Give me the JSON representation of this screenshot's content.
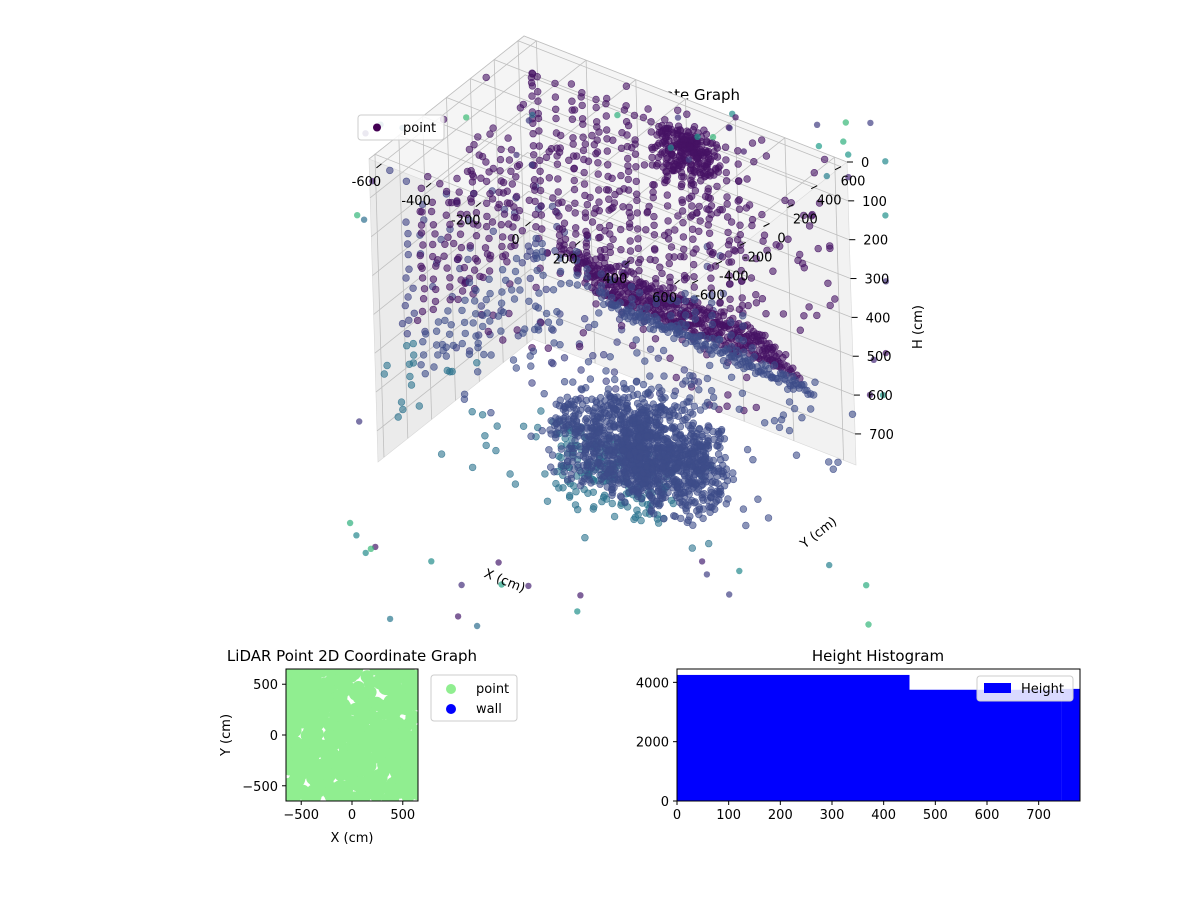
{
  "figure": {
    "background": "#ffffff"
  },
  "chart_data": [
    {
      "id": "plot3d",
      "type": "scatter",
      "title": "LiDAR Point 3D Coordinate Graph",
      "xlabel": "X (cm)",
      "ylabel": "Y (cm)",
      "zlabel": "H (cm)",
      "xlim": [
        -650,
        650
      ],
      "ylim": [
        -650,
        650
      ],
      "zlim": [
        0,
        780
      ],
      "z_inverted": true,
      "x_ticks": [
        "-600",
        "-400",
        "-200",
        "0",
        "200",
        "400",
        "600"
      ],
      "y_ticks": [
        "-600",
        "-400",
        "-200",
        "0",
        "200",
        "400",
        "600"
      ],
      "z_ticks": [
        "0",
        "100",
        "200",
        "300",
        "400",
        "500",
        "600",
        "700"
      ],
      "grid": true,
      "legend": {
        "position": "upper-left",
        "entries": [
          {
            "label": "point",
            "color": "#440154"
          }
        ]
      },
      "colormap": "viridis",
      "series": [
        {
          "name": "point",
          "points_note_free": true
        }
      ]
    },
    {
      "id": "plot2d",
      "type": "scatter",
      "title": "LiDAR Point 2D Coordinate Graph",
      "xlabel": "X (cm)",
      "ylabel": "Y (cm)",
      "xlim": [
        -650,
        650
      ],
      "ylim": [
        -650,
        650
      ],
      "x_ticks": [
        "−500",
        "0",
        "500"
      ],
      "y_ticks": [
        "−500",
        "0",
        "500"
      ],
      "legend": {
        "position": "outside-right",
        "entries": [
          {
            "label": "point",
            "color": "#90ee90"
          },
          {
            "label": "wall",
            "color": "#0000ff"
          }
        ]
      },
      "series": [
        {
          "name": "point",
          "color": "#90ee90"
        },
        {
          "name": "wall",
          "color": "#0000ff"
        }
      ]
    },
    {
      "id": "hist",
      "type": "bar",
      "title": "Height Histogram",
      "xlim": [
        0,
        780
      ],
      "ylim": [
        0,
        4450
      ],
      "x_ticks": [
        "0",
        "100",
        "200",
        "300",
        "400",
        "500",
        "600",
        "700"
      ],
      "y_ticks": [
        "0",
        "2000",
        "4000"
      ],
      "legend": {
        "position": "upper-right",
        "entries": [
          {
            "label": "Height",
            "color": "#0000ff"
          }
        ]
      },
      "series": [
        {
          "name": "Height",
          "color": "#0000ff",
          "bins": [
            {
              "x0": 0,
              "x1": 450,
              "count": 4250
            },
            {
              "x0": 450,
              "x1": 745,
              "count": 3750
            },
            {
              "x0": 745,
              "x1": 780,
              "count": 3780
            }
          ]
        }
      ]
    }
  ]
}
